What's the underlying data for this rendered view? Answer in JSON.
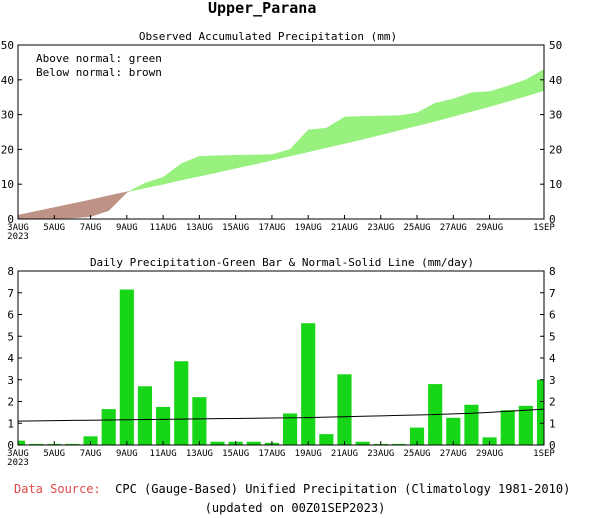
{
  "title": "Upper_Parana",
  "charts": {
    "top": {
      "title": "Observed Accumulated Precipitation (mm)",
      "legend_line1": "Above normal: green",
      "legend_line2": "Below normal: brown"
    },
    "bottom": {
      "title": "Daily Precipitation-Green Bar & Normal-Solid Line (mm/day)"
    }
  },
  "colors": {
    "above": "#98f07e",
    "below": "#bf9286",
    "bar": "#17d517",
    "axis": "#000000",
    "source_label": "#e34a4a"
  },
  "footer": {
    "source_label": "Data Source:",
    "source_text": "CPC (Gauge-Based) Unified Precipitation (Climatology 1981-2010)",
    "updated": "(updated on 00Z01SEP2023)"
  },
  "chart_data": [
    {
      "type": "area",
      "title": "Observed Accumulated Precipitation (mm)",
      "x_ticks": [
        "3AUG\n2023",
        "5AUG",
        "7AUG",
        "9AUG",
        "11AUG",
        "13AUG",
        "15AUG",
        "17AUG",
        "19AUG",
        "21AUG",
        "23AUG",
        "25AUG",
        "27AUG",
        "29AUG",
        "1SEP"
      ],
      "x_tick_days": [
        0,
        2,
        4,
        6,
        8,
        10,
        12,
        14,
        16,
        18,
        20,
        22,
        24,
        26,
        29
      ],
      "y_ticks": [
        0,
        10,
        20,
        30,
        40,
        50
      ],
      "ylim": [
        0,
        50
      ],
      "xlim": [
        0,
        29
      ],
      "days": [
        0,
        1,
        2,
        3,
        4,
        5,
        6,
        7,
        8,
        9,
        10,
        11,
        12,
        13,
        14,
        15,
        16,
        17,
        18,
        19,
        20,
        21,
        22,
        23,
        24,
        25,
        26,
        27,
        28,
        29
      ],
      "series": [
        {
          "name": "Observed",
          "values": [
            0.1,
            0.2,
            0.2,
            0.3,
            0.7,
            2.4,
            7.6,
            10.3,
            12.0,
            15.9,
            18.0,
            18.2,
            18.3,
            18.4,
            18.5,
            20.0,
            25.6,
            26.1,
            29.3,
            29.5,
            29.6,
            29.7,
            30.5,
            33.3,
            34.5,
            36.3,
            36.6,
            38.2,
            40.0,
            43.0
          ]
        },
        {
          "name": "Normal",
          "values": [
            1.1,
            2.2,
            3.3,
            4.4,
            5.5,
            6.7,
            7.8,
            8.9,
            10.0,
            11.2,
            12.3,
            13.4,
            14.6,
            15.7,
            16.9,
            18.1,
            19.3,
            20.5,
            21.7,
            22.9,
            24.2,
            25.5,
            26.8,
            28.1,
            29.5,
            30.9,
            32.3,
            33.8,
            35.3,
            36.9
          ]
        }
      ]
    },
    {
      "type": "bar",
      "title": "Daily Precipitation-Green Bar & Normal-Solid Line (mm/day)",
      "x_ticks": [
        "3AUG\n2023",
        "5AUG",
        "7AUG",
        "9AUG",
        "11AUG",
        "13AUG",
        "15AUG",
        "17AUG",
        "19AUG",
        "21AUG",
        "23AUG",
        "25AUG",
        "27AUG",
        "29AUG",
        "1SEP"
      ],
      "x_tick_days": [
        0,
        2,
        4,
        6,
        8,
        10,
        12,
        14,
        16,
        18,
        20,
        22,
        24,
        26,
        29
      ],
      "y_ticks": [
        0,
        1,
        2,
        3,
        4,
        5,
        6,
        7,
        8
      ],
      "ylim": [
        0,
        8
      ],
      "xlim": [
        0,
        29
      ],
      "days": [
        0,
        1,
        2,
        3,
        4,
        5,
        6,
        7,
        8,
        9,
        10,
        11,
        12,
        13,
        14,
        15,
        16,
        17,
        18,
        19,
        20,
        21,
        22,
        23,
        24,
        25,
        26,
        27,
        28,
        29
      ],
      "series": [
        {
          "name": "Daily",
          "values": [
            0.2,
            0.05,
            0.05,
            0.05,
            0.4,
            1.65,
            7.15,
            2.7,
            1.75,
            3.85,
            2.2,
            0.15,
            0.15,
            0.15,
            0.1,
            1.45,
            5.6,
            0.5,
            3.25,
            0.15,
            0.05,
            0.05,
            0.8,
            2.8,
            1.25,
            1.85,
            0.35,
            1.6,
            1.8,
            3.0
          ]
        },
        {
          "name": "Normal",
          "values": [
            1.1,
            1.11,
            1.12,
            1.13,
            1.14,
            1.15,
            1.16,
            1.17,
            1.18,
            1.19,
            1.2,
            1.21,
            1.22,
            1.23,
            1.24,
            1.25,
            1.26,
            1.28,
            1.3,
            1.32,
            1.34,
            1.36,
            1.38,
            1.4,
            1.43,
            1.46,
            1.5,
            1.55,
            1.6,
            1.65
          ]
        }
      ]
    }
  ]
}
